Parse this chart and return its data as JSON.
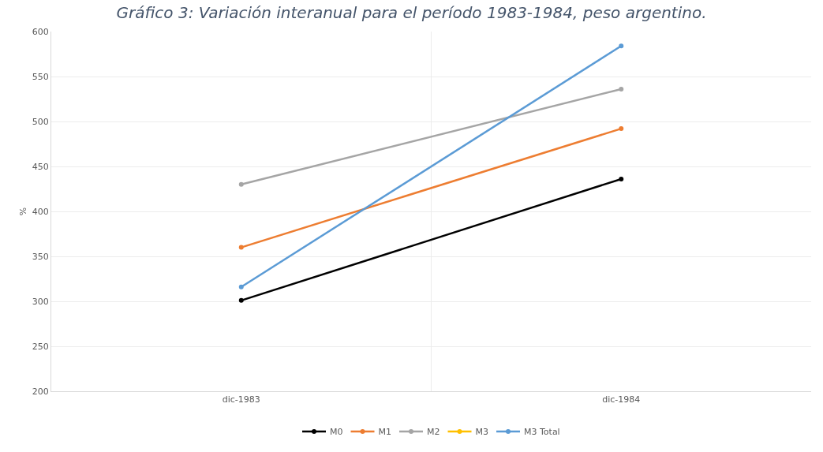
{
  "chart_data": {
    "type": "line",
    "title": "Gráfico 3: Variación interanual para el período 1983-1984, peso argentino.",
    "ylabel": "%",
    "categories": [
      "dic-1983",
      "dic-1984"
    ],
    "series": [
      {
        "name": "M0",
        "color": "#000000",
        "values": [
          301,
          436
        ]
      },
      {
        "name": "M1",
        "color": "#ed7d31",
        "values": [
          360,
          492
        ]
      },
      {
        "name": "M2",
        "color": "#a5a5a5",
        "values": [
          430,
          536
        ]
      },
      {
        "name": "M3",
        "color": "#ffc000",
        "values": [
          null,
          null
        ]
      },
      {
        "name": "M3 Total",
        "color": "#5b9bd5",
        "values": [
          316,
          584
        ]
      }
    ],
    "ylim": [
      200,
      600
    ],
    "yticks": [
      200,
      250,
      300,
      350,
      400,
      450,
      500,
      550,
      600
    ],
    "grid": true,
    "legend": "bottom",
    "marker": "circle",
    "line_style": "solid"
  }
}
